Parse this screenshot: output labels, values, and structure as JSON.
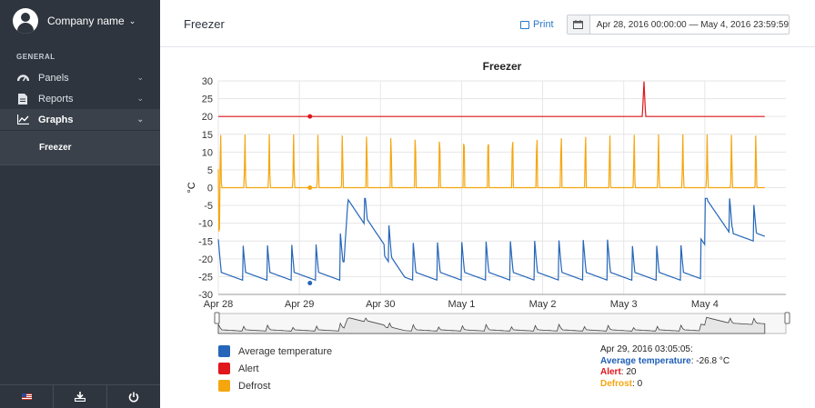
{
  "sidebar": {
    "company_name": "Company name",
    "section_label": "GENERAL",
    "items": [
      {
        "label": "Panels",
        "icon": "dashboard-icon"
      },
      {
        "label": "Reports",
        "icon": "document-icon"
      },
      {
        "label": "Graphs",
        "icon": "line-chart-icon"
      }
    ],
    "sub_item": "Freezer",
    "footer_icons": [
      "us-flag-icon",
      "download-icon",
      "power-icon"
    ]
  },
  "topbar": {
    "title": "Freezer",
    "print_label": "Print",
    "date_range": "Apr 28, 2016 00:00:00 — May 4, 2016 23:59:59"
  },
  "chart_data": {
    "type": "line",
    "title": "Freezer",
    "ylabel": "°C",
    "ylim": [
      -30,
      30
    ],
    "yticks": [
      30,
      25,
      20,
      15,
      10,
      5,
      0,
      -5,
      -10,
      -15,
      -20,
      -25,
      -30
    ],
    "xticks": [
      "Apr 28",
      "Apr 29",
      "Apr 30",
      "May 1",
      "May 2",
      "May 3",
      "May 4"
    ],
    "grid": true,
    "legend_position": "bottom-left",
    "series": [
      {
        "name": "Average temperature",
        "color": "#2566b9",
        "description": "oscillates between about -27 and -15 °C with a rise to about -5 °C around Apr 30 and May 4"
      },
      {
        "name": "Alert",
        "color": "#e0161b",
        "values_constant": 20,
        "spike": {
          "date": "May 3",
          "value": 30
        }
      },
      {
        "name": "Defrost",
        "color": "#f5a60f",
        "baseline": 0,
        "peaks": 15
      }
    ],
    "navigator": true
  },
  "tooltip": {
    "date": "Apr 29, 2016 03:05:05:",
    "lines": [
      {
        "label": "Average temperature",
        "value": "-26.8 °C",
        "color": "#1f5fb8"
      },
      {
        "label": "Alert",
        "value": "20",
        "color": "#e0161b"
      },
      {
        "label": "Defrost",
        "value": "0",
        "color": "#f5a60f"
      }
    ]
  }
}
